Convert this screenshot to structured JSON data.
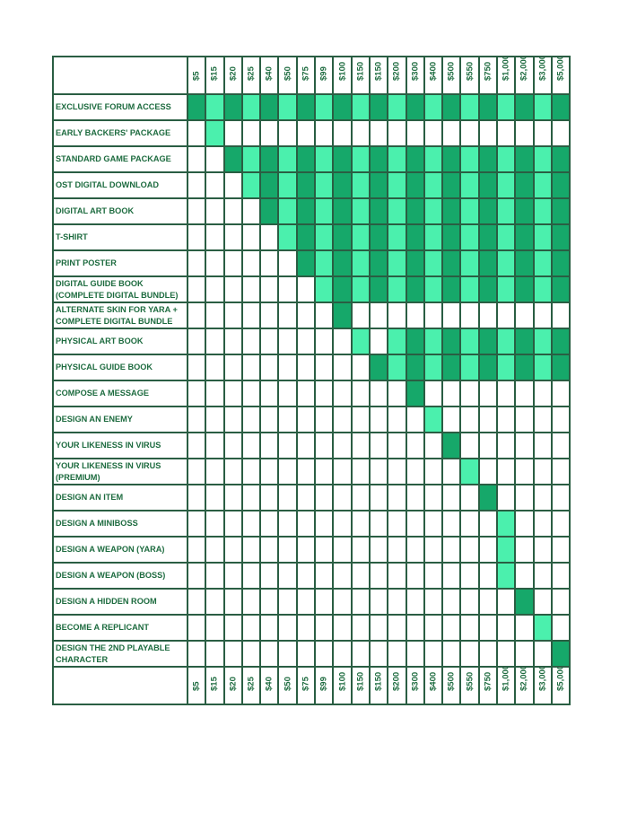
{
  "colors": {
    "dark": "#16a86a",
    "light": "#4bf0ad",
    "empty": "#ffffff",
    "border": "#2a5e43",
    "text": "#1d6b3f"
  },
  "prices": [
    "$5",
    "$15",
    "$20",
    "$25",
    "$40",
    "$50",
    "$75",
    "$99",
    "$100",
    "$150",
    "$150",
    "$200",
    "$300",
    "$400",
    "$500",
    "$550",
    "$750",
    "$1,000",
    "$2,000",
    "$3,000",
    "$5,000"
  ],
  "rows": [
    {
      "label": "EXCLUSIVE FORUM ACCESS",
      "cells": "DLDLDLDLDLDLDLDLDLDLD"
    },
    {
      "label": "EARLY BACKERS' PACKAGE",
      "cells": "-L-------------------"
    },
    {
      "label": "STANDARD GAME PACKAGE",
      "cells": "--DLDLDLDLDLDLDLDLDLD"
    },
    {
      "label": "OST DIGITAL DOWNLOAD",
      "cells": "---LDLDLDLDLDLDLDLDLD"
    },
    {
      "label": "DIGITAL ART BOOK",
      "cells": "----DLDLDLDLDLDLDLDLD"
    },
    {
      "label": "T-SHIRT",
      "cells": "-----LDLDLDLDLDLDLDLD"
    },
    {
      "label": "PRINT POSTER",
      "cells": "------DLDLDLDLDLDLDLD"
    },
    {
      "label": "DIGITAL GUIDE BOOK (COMPLETE DIGITAL BUNDLE)",
      "cells": "-------LDLDLDLDLDLDLD"
    },
    {
      "label": "ALTERNATE SKIN FOR YARA + COMPLETE DIGITAL BUNDLE",
      "cells": "--------D------------"
    },
    {
      "label": "PHYSICAL ART BOOK",
      "cells": "---------L-LDLDLDLDLD"
    },
    {
      "label": "PHYSICAL GUIDE BOOK",
      "cells": "----------DLDLDLDLDLD"
    },
    {
      "label": "COMPOSE A MESSAGE",
      "cells": "------------D--------"
    },
    {
      "label": "DESIGN AN ENEMY",
      "cells": "-------------L-------"
    },
    {
      "label": "YOUR LIKENESS IN VIRUS",
      "cells": "--------------D------"
    },
    {
      "label": "YOUR LIKENESS IN VIRUS (PREMIUM)",
      "cells": "---------------L-----"
    },
    {
      "label": "DESIGN AN ITEM",
      "cells": "----------------D----"
    },
    {
      "label": "DESIGN A MINIBOSS",
      "cells": "-----------------L---"
    },
    {
      "label": "DESIGN A WEAPON (YARA)",
      "cells": "-----------------L---"
    },
    {
      "label": "DESIGN A WEAPON (BOSS)",
      "cells": "-----------------L---"
    },
    {
      "label": "DESIGN A HIDDEN ROOM",
      "cells": "------------------D--"
    },
    {
      "label": "BECOME A REPLICANT",
      "cells": "-------------------L-"
    },
    {
      "label": "DESIGN THE 2ND PLAYABLE CHARACTER",
      "cells": "--------------------D"
    }
  ]
}
